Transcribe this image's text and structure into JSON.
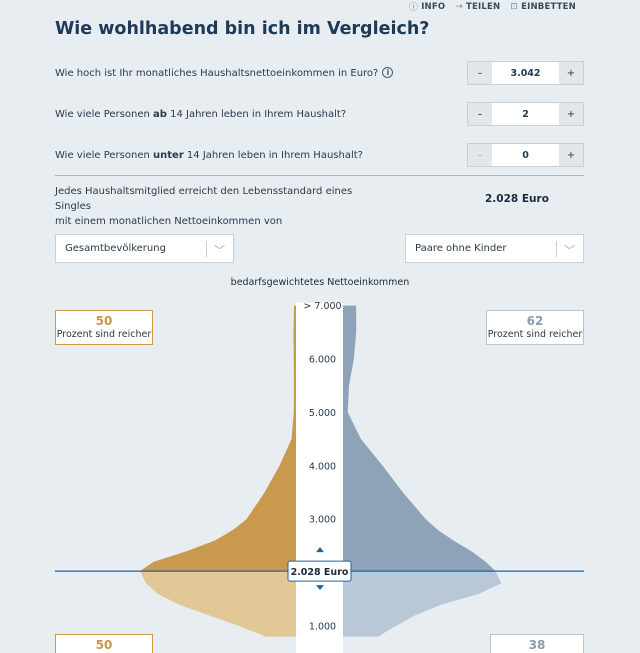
{
  "topbar": {
    "info": "INFO",
    "share": "TEILEN",
    "embed": "EINBETTEN"
  },
  "title": "Wie wohlhabend bin ich im Vergleich?",
  "questions": [
    {
      "text": "Wie hoch ist Ihr monatliches Haushaltsnettoeinkommen in Euro?",
      "value": "3.042",
      "minus": "–",
      "plus": "+"
    },
    {
      "pre": "Wie viele Personen ",
      "bold": "ab",
      "post": " 14 Jahren leben in Ihrem Haushalt?",
      "value": "2",
      "minus": "–",
      "plus": "+"
    },
    {
      "pre": "Wie viele Personen ",
      "bold": "unter",
      "post": " 14 Jahren leben in Ihrem Haushalt?",
      "value": "0",
      "minus": "–",
      "plus": "+"
    }
  ],
  "result": {
    "text_line1": "Jedes Haushaltsmitglied erreicht den Lebensstandard eines Singles",
    "text_line2": "mit einem monatlichen Nettoeinkommen von",
    "value": "2.028 Euro"
  },
  "selects": {
    "left": "Gesamtbevölkerung",
    "right": "Paare ohne Kinder"
  },
  "chart_data": {
    "type": "area",
    "title": "bedarfsgewichtetes Nettoeinkommen",
    "y_tick_labels": [
      "> 7.000",
      "6.000",
      "5.000",
      "4.000",
      "3.000",
      "1.000"
    ],
    "y_ticks": [
      7000,
      6000,
      5000,
      4000,
      3000,
      1000
    ],
    "marker_value": 2028,
    "marker_label": "2.028 Euro",
    "colors": {
      "left_upper": "#c9994d",
      "left_lower": "#e2c797",
      "right_upper": "#8ea3b8",
      "right_lower": "#b9c8d6",
      "marker_line": "#2265a0"
    },
    "series": [
      {
        "name": "Gesamtbevölkerung",
        "x": [
          7000,
          6500,
          6000,
          5500,
          5000,
          4500,
          4000,
          3500,
          3000,
          2800,
          2600,
          2400,
          2200,
          2028,
          1800,
          1600,
          1400,
          1200,
          1000,
          800
        ],
        "values": [
          0.013,
          0.017,
          0.015,
          0.014,
          0.015,
          0.03,
          0.11,
          0.21,
          0.33,
          0.42,
          0.54,
          0.73,
          0.95,
          1.04,
          1.0,
          0.92,
          0.78,
          0.58,
          0.38,
          0.2
        ]
      },
      {
        "name": "Paare ohne Kinder",
        "x": [
          7000,
          6500,
          6000,
          5500,
          5000,
          4500,
          4000,
          3500,
          3000,
          2800,
          2600,
          2400,
          2200,
          2028,
          1800,
          1600,
          1400,
          1200,
          1000,
          800
        ],
        "values": [
          0.11,
          0.11,
          0.09,
          0.05,
          0.04,
          0.15,
          0.33,
          0.5,
          0.69,
          0.79,
          0.92,
          1.07,
          1.19,
          1.27,
          1.32,
          1.13,
          0.82,
          0.6,
          0.44,
          0.29
        ]
      }
    ],
    "left_badge": {
      "top_value": "50",
      "top_label": "Prozent sind reicher",
      "bottom_value": "50"
    },
    "right_badge": {
      "top_value": "62",
      "top_label": "Prozent sind reicher",
      "bottom_value": "38"
    }
  }
}
